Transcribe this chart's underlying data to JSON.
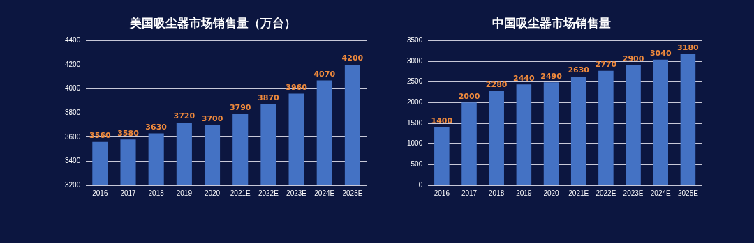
{
  "chart_data": [
    {
      "type": "bar",
      "title": "美国吸尘器市场销售量（万台）",
      "categories": [
        "2016",
        "2017",
        "2018",
        "2019",
        "2020",
        "2021E",
        "2022E",
        "2023E",
        "2024E",
        "2025E"
      ],
      "values": [
        3560,
        3580,
        3630,
        3720,
        3700,
        3790,
        3870,
        3960,
        4070,
        4200
      ],
      "color": "#4472c4",
      "ylim": [
        3200,
        4400
      ],
      "yticks": [
        3200,
        3400,
        3600,
        3800,
        4000,
        4200,
        4400
      ],
      "grid": "y",
      "data_labels": true
    },
    {
      "type": "bar",
      "title": "中国吸尘器市场销售量",
      "categories": [
        "2016",
        "2017",
        "2018",
        "2019",
        "2020",
        "2021E",
        "2022E",
        "2023E",
        "2024E",
        "2025E"
      ],
      "values": [
        1400,
        2000,
        2280,
        2440,
        2490,
        2630,
        2770,
        2900,
        3040,
        3180
      ],
      "color": "#4472c4",
      "ylim": [
        0,
        3500
      ],
      "yticks": [
        0,
        500,
        1000,
        1500,
        2000,
        2500,
        3000,
        3500
      ],
      "grid": "y",
      "data_labels": true
    }
  ]
}
